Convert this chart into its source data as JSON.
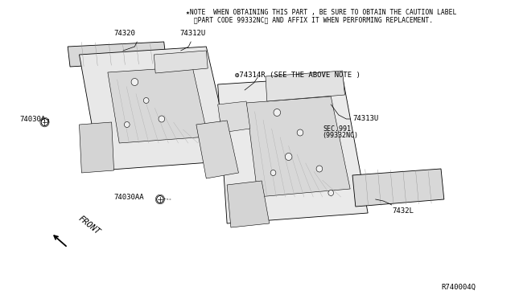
{
  "bg_color": "#ffffff",
  "note_line1": "★NOTE  WHEN OBTAINING THIS PART , BE SURE TO OBTAIN THE CAUTION LABEL",
  "note_line2": "  〈PART CODE 99332NC〉 AND AFFIX IT WHEN PERFORMING REPLACEMENT.",
  "label_74320": "74320",
  "label_74312U": "74312U",
  "label_74314R": "❂74314R (SEE THE ABOVE NOTE )",
  "label_74030A": "74030A",
  "label_74313U": "74313U",
  "label_sec_line1": "SEC.991",
  "label_sec_line2": "(99332NC)",
  "label_74030AA": "74030AA",
  "label_7432L": "7432L",
  "label_front": "FRONT",
  "ref_code": "R740004Q",
  "fs_note": 5.8,
  "fs_label": 6.5,
  "fs_ref": 6.5,
  "fs_front": 7.5,
  "lc": "#000000",
  "fill_panel": "#e4e4e4",
  "fill_sill": "#d8d8d8",
  "fill_detail": "#cccccc",
  "stroke": 0.6
}
